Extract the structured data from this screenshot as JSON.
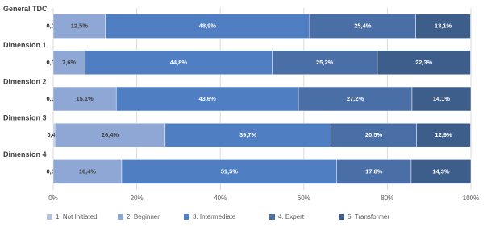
{
  "chart_data": {
    "type": "stacked-bar-horizontal",
    "categories": [
      "General TDC",
      "Dimension 1",
      "Dimension 2",
      "Dimension 3",
      "Dimension 4"
    ],
    "series": [
      {
        "name": "1. Not Initiated",
        "color": "#b4c2de",
        "values": [
          0.0,
          0.0,
          0.0,
          0.4,
          0.0
        ],
        "value_labels": [
          "0,0%",
          "0,0%",
          "0,0%",
          "0,4%",
          "0,0%"
        ]
      },
      {
        "name": "2. Beginner",
        "color": "#8fa7d4",
        "values": [
          12.5,
          7.6,
          15.1,
          26.4,
          16.4
        ],
        "value_labels": [
          "12,5%",
          "7,6%",
          "15,1%",
          "26,4%",
          "16,4%"
        ]
      },
      {
        "name": "3. Intermediate",
        "color": "#4f7ec3",
        "values": [
          48.9,
          44.8,
          43.6,
          39.7,
          51.5
        ],
        "value_labels": [
          "48,9%",
          "44,8%",
          "43,6%",
          "39,7%",
          "51,5%"
        ]
      },
      {
        "name": "4. Expert",
        "color": "#4a6fa7",
        "values": [
          25.4,
          25.2,
          27.2,
          20.5,
          17.8
        ],
        "value_labels": [
          "25,4%",
          "25,2%",
          "27,2%",
          "20,5%",
          "17,8%"
        ]
      },
      {
        "name": "5. Transformer",
        "color": "#3d5d8b",
        "values": [
          13.1,
          22.3,
          14.1,
          12.9,
          14.3
        ],
        "value_labels": [
          "13,1%",
          "22,3%",
          "14,1%",
          "12,9%",
          "14,3%"
        ]
      }
    ],
    "xlim": [
      0,
      100
    ],
    "xticks": [
      {
        "value": 0,
        "label": "0%"
      },
      {
        "value": 20,
        "label": "20%"
      },
      {
        "value": 40,
        "label": "40%"
      },
      {
        "value": 60,
        "label": "60%"
      },
      {
        "value": 80,
        "label": "80%"
      },
      {
        "value": 100,
        "label": "100%"
      }
    ],
    "grid": true
  }
}
